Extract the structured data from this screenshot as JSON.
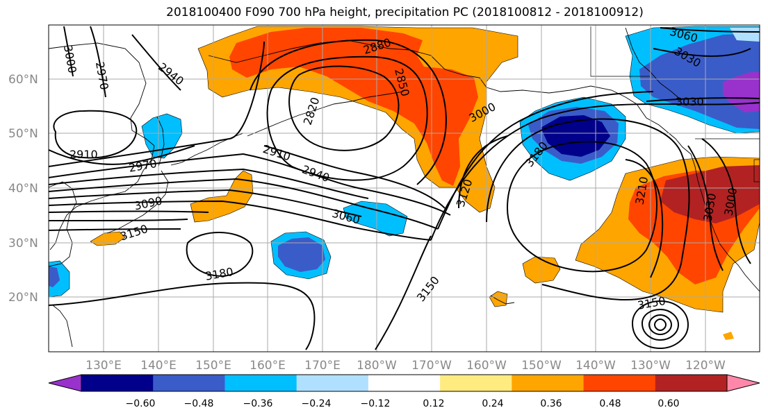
{
  "title": "2018100400 F090 700 hPa height, precipitation PC (2018100812 - 2018100912)",
  "map": {
    "latitude_labels": [
      "60°N",
      "50°N",
      "40°N",
      "30°N",
      "20°N"
    ],
    "longitude_labels": [
      "130°E",
      "140°E",
      "150°E",
      "160°E",
      "170°E",
      "180°W",
      "170°W",
      "160°W",
      "150°W",
      "140°W",
      "130°W",
      "120°W"
    ],
    "contour_labels": [
      "3000",
      "2970",
      "2940",
      "2880",
      "2850",
      "2820",
      "3060",
      "3030",
      "3030",
      "2910",
      "2970",
      "2910",
      "2940",
      "3000",
      "3090",
      "3150",
      "3060",
      "3180",
      "3120",
      "3180",
      "3210",
      "3030",
      "3000",
      "3150",
      "3150"
    ],
    "grid": true,
    "contour_variable": "700 hPa height",
    "fill_variable": "precipitation PC"
  },
  "colorbar": {
    "tick_labels": [
      "−0.60",
      "−0.48",
      "−0.36",
      "−0.24",
      "−0.12",
      "0.12",
      "0.24",
      "0.36",
      "0.48",
      "0.60"
    ],
    "colors": [
      "#9932CC",
      "#00008B",
      "#3A5CC9",
      "#00BFFF",
      "#B0E0FF",
      "#FFFFFF",
      "#FFEB80",
      "#FFA500",
      "#FF4500",
      "#B22222",
      "#FF88AA"
    ],
    "extend": "both"
  }
}
